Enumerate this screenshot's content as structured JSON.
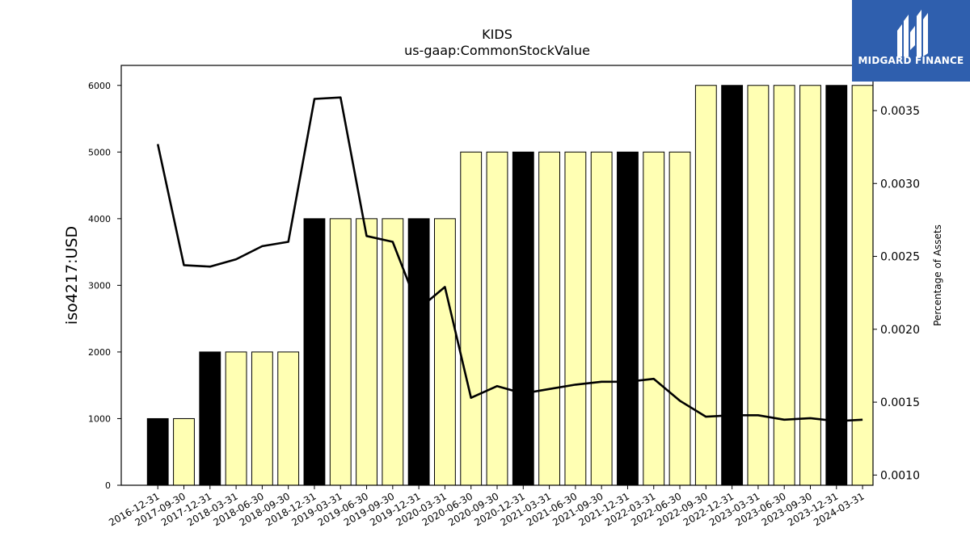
{
  "chart_data": {
    "type": "bar",
    "title": "KIDS",
    "subtitle": "us-gaap:CommonStockValue",
    "ylabel": "iso4217:USD",
    "y2label": "Percentage of Assets",
    "ylim": [
      0,
      6300
    ],
    "y2lim": [
      0.00093,
      0.00381
    ],
    "yticks": [
      "0",
      "1000",
      "2000",
      "3000",
      "4000",
      "5000",
      "6000"
    ],
    "y2ticks": [
      "0.0010",
      "0.0015",
      "0.0020",
      "0.0025",
      "0.0030",
      "0.0035"
    ],
    "categories": [
      "2016-12-31",
      "2017-09-30",
      "2017-12-31",
      "2018-03-31",
      "2018-06-30",
      "2018-09-30",
      "2018-12-31",
      "2019-03-31",
      "2019-06-30",
      "2019-09-30",
      "2019-12-31",
      "2020-03-31",
      "2020-06-30",
      "2020-09-30",
      "2020-12-31",
      "2021-03-31",
      "2021-06-30",
      "2021-09-30",
      "2021-12-31",
      "2022-03-31",
      "2022-06-30",
      "2022-09-30",
      "2022-12-31",
      "2023-03-31",
      "2023-06-30",
      "2023-09-30",
      "2023-12-31",
      "2024-03-31"
    ],
    "values": [
      1000,
      1000,
      2000,
      2000,
      2000,
      2000,
      4000,
      4000,
      4000,
      4000,
      4000,
      4000,
      5000,
      5000,
      5000,
      5000,
      5000,
      5000,
      5000,
      5000,
      5000,
      6000,
      6000,
      6000,
      6000,
      6000,
      6000,
      6000
    ],
    "annual": [
      true,
      false,
      true,
      false,
      false,
      false,
      true,
      false,
      false,
      false,
      true,
      false,
      false,
      false,
      true,
      false,
      false,
      false,
      true,
      false,
      false,
      false,
      true,
      false,
      false,
      false,
      true,
      false
    ],
    "line_series": {
      "values": [
        0.00327,
        0.00244,
        0.00243,
        0.00248,
        0.00257,
        0.0026,
        0.00358,
        0.00359,
        0.00264,
        0.0026,
        0.00214,
        0.00229,
        0.00153,
        0.00161,
        0.00156,
        0.00159,
        0.00162,
        0.00164,
        0.00164,
        0.00166,
        0.00151,
        0.0014,
        0.00141,
        0.00141,
        0.00138,
        0.00139,
        0.00137,
        0.00138
      ]
    },
    "colors": {
      "annual_bar": "#000000",
      "quarter_bar": "#ffffb3",
      "line": "#000000"
    },
    "grid": false
  },
  "logo": {
    "text": "MIDGARD FINANCE"
  }
}
